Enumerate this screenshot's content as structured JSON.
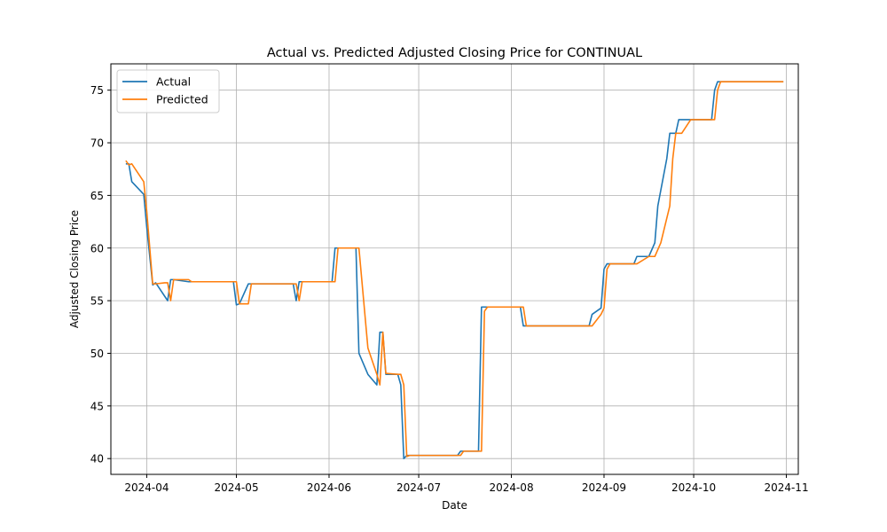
{
  "chart_data": {
    "type": "line",
    "title": "Actual vs. Predicted Adjusted Closing Price for CONTINUAL",
    "xlabel": "Date",
    "ylabel": "Adjusted Closing Price",
    "xlim": [
      "2024-03-20",
      "2024-11-05"
    ],
    "ylim": [
      38.5,
      77.5
    ],
    "x_ticks": [
      "2024-04",
      "2024-05",
      "2024-06",
      "2024-07",
      "2024-08",
      "2024-09",
      "2024-10",
      "2024-11"
    ],
    "y_ticks": [
      40,
      45,
      50,
      55,
      60,
      65,
      70,
      75
    ],
    "grid": true,
    "legend_position": "upper-left",
    "series": [
      {
        "name": "Actual",
        "color": "#1f77b4",
        "points": [
          [
            "2024-03-25",
            68.0
          ],
          [
            "2024-03-26",
            68.0
          ],
          [
            "2024-03-27",
            66.3
          ],
          [
            "2024-03-31",
            65.1
          ],
          [
            "2024-04-01",
            62.0
          ],
          [
            "2024-04-03",
            56.5
          ],
          [
            "2024-04-04",
            56.7
          ],
          [
            "2024-04-08",
            55.0
          ],
          [
            "2024-04-09",
            57.0
          ],
          [
            "2024-04-10",
            57.0
          ],
          [
            "2024-04-15",
            56.8
          ],
          [
            "2024-04-30",
            56.8
          ],
          [
            "2024-05-01",
            54.6
          ],
          [
            "2024-05-02",
            54.7
          ],
          [
            "2024-05-05",
            56.6
          ],
          [
            "2024-05-20",
            56.6
          ],
          [
            "2024-05-21",
            55.0
          ],
          [
            "2024-05-22",
            56.8
          ],
          [
            "2024-06-02",
            56.8
          ],
          [
            "2024-06-03",
            60.0
          ],
          [
            "2024-06-09",
            60.0
          ],
          [
            "2024-06-10",
            60.0
          ],
          [
            "2024-06-11",
            50.0
          ],
          [
            "2024-06-14",
            48.0
          ],
          [
            "2024-06-17",
            47.0
          ],
          [
            "2024-06-18",
            52.0
          ],
          [
            "2024-06-19",
            52.0
          ],
          [
            "2024-06-20",
            48.0
          ],
          [
            "2024-06-24",
            48.0
          ],
          [
            "2024-06-25",
            47.0
          ],
          [
            "2024-06-26",
            40.0
          ],
          [
            "2024-06-27",
            40.3
          ],
          [
            "2024-07-14",
            40.3
          ],
          [
            "2024-07-15",
            40.7
          ],
          [
            "2024-07-21",
            40.7
          ],
          [
            "2024-07-22",
            54.4
          ],
          [
            "2024-08-04",
            54.4
          ],
          [
            "2024-08-05",
            52.6
          ],
          [
            "2024-08-27",
            52.6
          ],
          [
            "2024-08-28",
            53.7
          ],
          [
            "2024-08-31",
            54.3
          ],
          [
            "2024-09-01",
            58.0
          ],
          [
            "2024-09-02",
            58.5
          ],
          [
            "2024-09-11",
            58.5
          ],
          [
            "2024-09-12",
            59.2
          ],
          [
            "2024-09-16",
            59.2
          ],
          [
            "2024-09-18",
            60.5
          ],
          [
            "2024-09-19",
            64.0
          ],
          [
            "2024-09-22",
            68.5
          ],
          [
            "2024-09-23",
            70.9
          ],
          [
            "2024-09-25",
            70.9
          ],
          [
            "2024-09-26",
            72.2
          ],
          [
            "2024-10-07",
            72.2
          ],
          [
            "2024-10-08",
            75.0
          ],
          [
            "2024-10-09",
            75.8
          ],
          [
            "2024-10-31",
            75.8
          ]
        ]
      },
      {
        "name": "Predicted",
        "color": "#ff7f0e",
        "points": [
          [
            "2024-03-25",
            68.3
          ],
          [
            "2024-03-26",
            67.9
          ],
          [
            "2024-03-27",
            68.0
          ],
          [
            "2024-03-31",
            66.3
          ],
          [
            "2024-04-01",
            63.5
          ],
          [
            "2024-04-03",
            56.6
          ],
          [
            "2024-04-04",
            56.6
          ],
          [
            "2024-04-07",
            56.7
          ],
          [
            "2024-04-08",
            56.7
          ],
          [
            "2024-04-09",
            55.0
          ],
          [
            "2024-04-10",
            57.0
          ],
          [
            "2024-04-15",
            57.0
          ],
          [
            "2024-04-16",
            56.8
          ],
          [
            "2024-04-30",
            56.8
          ],
          [
            "2024-05-01",
            56.8
          ],
          [
            "2024-05-02",
            54.7
          ],
          [
            "2024-05-05",
            54.7
          ],
          [
            "2024-05-06",
            56.6
          ],
          [
            "2024-05-21",
            56.6
          ],
          [
            "2024-05-22",
            55.0
          ],
          [
            "2024-05-23",
            56.8
          ],
          [
            "2024-06-03",
            56.8
          ],
          [
            "2024-06-04",
            60.0
          ],
          [
            "2024-06-10",
            60.0
          ],
          [
            "2024-06-11",
            60.0
          ],
          [
            "2024-06-14",
            50.5
          ],
          [
            "2024-06-17",
            48.0
          ],
          [
            "2024-06-18",
            47.0
          ],
          [
            "2024-06-19",
            52.0
          ],
          [
            "2024-06-20",
            48.1
          ],
          [
            "2024-06-24",
            48.0
          ],
          [
            "2024-06-25",
            48.0
          ],
          [
            "2024-06-26",
            47.0
          ],
          [
            "2024-06-27",
            40.2
          ],
          [
            "2024-06-28",
            40.3
          ],
          [
            "2024-07-15",
            40.3
          ],
          [
            "2024-07-16",
            40.7
          ],
          [
            "2024-07-22",
            40.7
          ],
          [
            "2024-07-23",
            54.0
          ],
          [
            "2024-07-24",
            54.4
          ],
          [
            "2024-08-05",
            54.4
          ],
          [
            "2024-08-06",
            52.6
          ],
          [
            "2024-08-28",
            52.6
          ],
          [
            "2024-08-31",
            53.7
          ],
          [
            "2024-09-01",
            54.3
          ],
          [
            "2024-09-02",
            58.0
          ],
          [
            "2024-09-03",
            58.5
          ],
          [
            "2024-09-12",
            58.5
          ],
          [
            "2024-09-16",
            59.2
          ],
          [
            "2024-09-18",
            59.2
          ],
          [
            "2024-09-20",
            60.5
          ],
          [
            "2024-09-23",
            64.0
          ],
          [
            "2024-09-24",
            68.5
          ],
          [
            "2024-09-25",
            70.9
          ],
          [
            "2024-09-27",
            70.9
          ],
          [
            "2024-09-30",
            72.2
          ],
          [
            "2024-10-08",
            72.2
          ],
          [
            "2024-10-09",
            75.0
          ],
          [
            "2024-10-10",
            75.8
          ],
          [
            "2024-10-31",
            75.8
          ]
        ]
      }
    ]
  }
}
